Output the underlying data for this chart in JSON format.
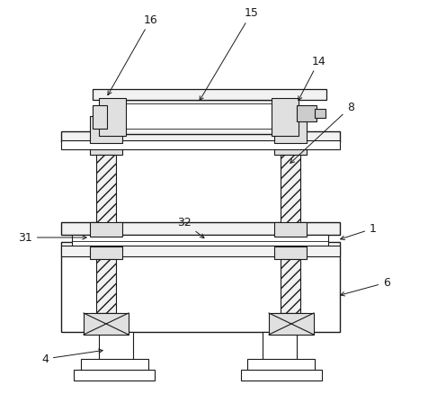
{
  "fig_width": 4.86,
  "fig_height": 4.39,
  "dpi": 100,
  "bg_color": "#ffffff",
  "lc": "#1a1a1a",
  "fc_white": "#ffffff",
  "fc_light": "#f2f2f2",
  "fc_med": "#e0e0e0",
  "fc_dark": "#cccccc"
}
